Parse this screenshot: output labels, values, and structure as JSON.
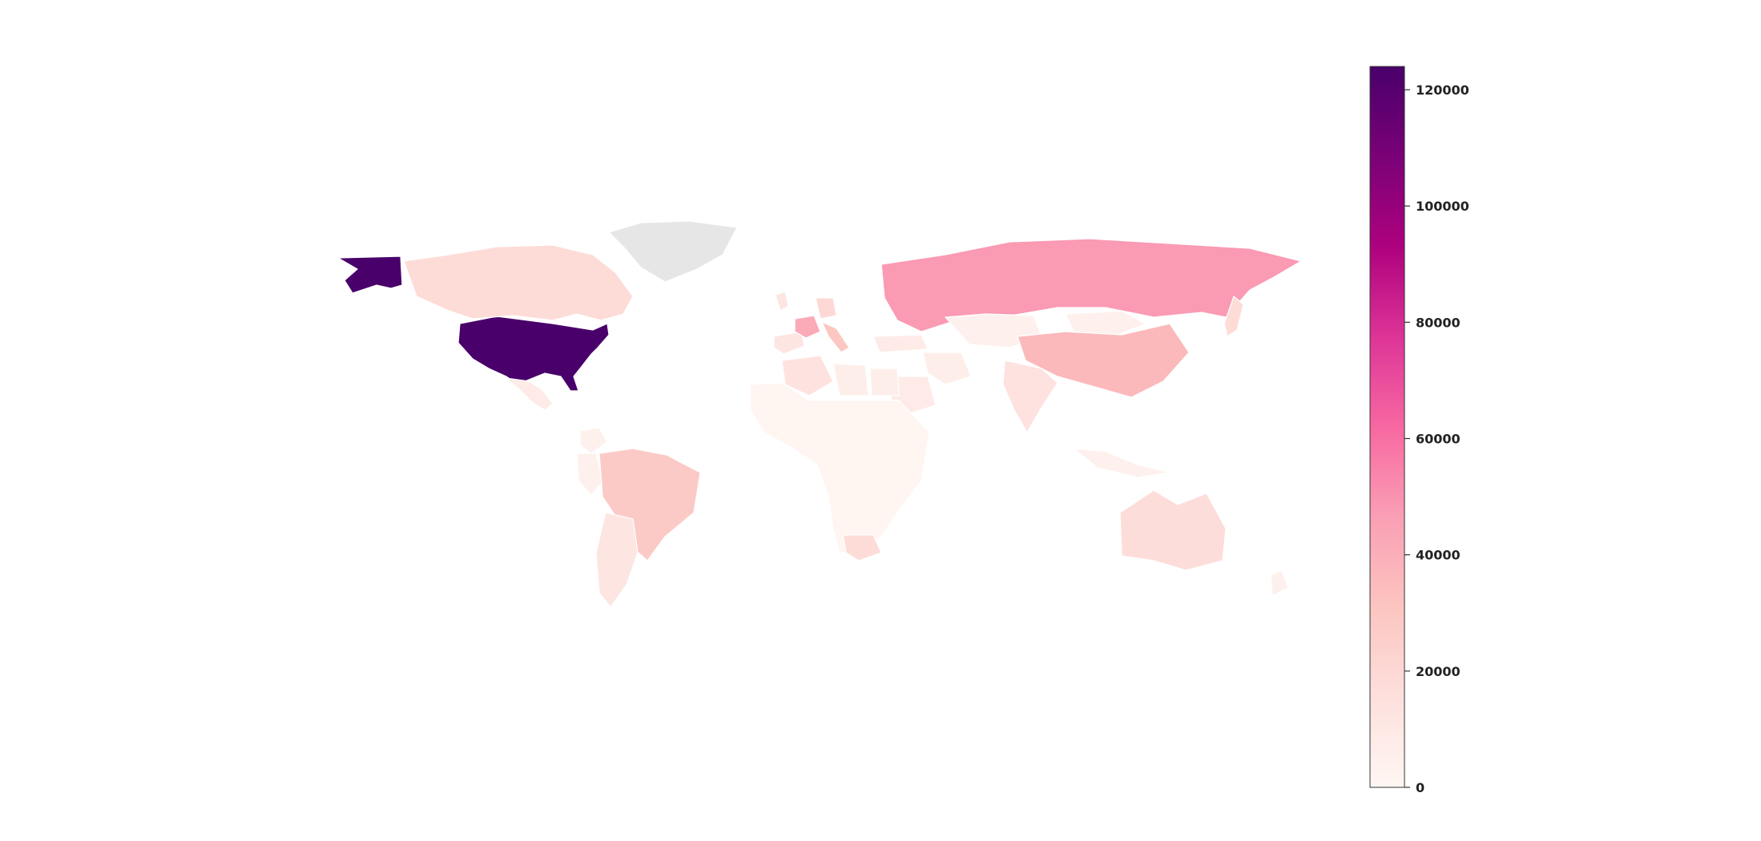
{
  "chart_data": {
    "type": "choropleth",
    "title": "",
    "colormap": "RdPu",
    "no_data_color": "#e6e6e6",
    "vmin": 0,
    "vmax": 124000,
    "colorbar": {
      "ticks": [
        0,
        20000,
        40000,
        60000,
        80000,
        100000,
        120000
      ],
      "tick_labels": [
        "0",
        "20000",
        "40000",
        "60000",
        "80000",
        "100000",
        "120000"
      ]
    },
    "regions": [
      {
        "name": "United States",
        "value": 124000
      },
      {
        "name": "Russia",
        "value": 48000
      },
      {
        "name": "China",
        "value": 36000
      },
      {
        "name": "Brazil",
        "value": 28000
      },
      {
        "name": "Canada",
        "value": 18000
      },
      {
        "name": "Australia",
        "value": 17000
      },
      {
        "name": "Argentina",
        "value": 12000
      },
      {
        "name": "France",
        "value": 42000
      },
      {
        "name": "Italy",
        "value": 30000
      },
      {
        "name": "Germany",
        "value": 20000
      },
      {
        "name": "United Kingdom",
        "value": 12000
      },
      {
        "name": "Spain",
        "value": 12000
      },
      {
        "name": "Turkey",
        "value": 8000
      },
      {
        "name": "Iran",
        "value": 6000
      },
      {
        "name": "India",
        "value": 14000
      },
      {
        "name": "Kazakhstan",
        "value": 5000
      },
      {
        "name": "Mongolia",
        "value": 4000
      },
      {
        "name": "Algeria",
        "value": 14000
      },
      {
        "name": "Libya",
        "value": 6000
      },
      {
        "name": "Egypt",
        "value": 6000
      },
      {
        "name": "Saudi Arabia",
        "value": 8000
      },
      {
        "name": "Mexico",
        "value": 9000
      },
      {
        "name": "South Africa",
        "value": 18000
      },
      {
        "name": "Peru",
        "value": 5000
      },
      {
        "name": "Colombia",
        "value": 4000
      },
      {
        "name": "Japan",
        "value": 18000
      },
      {
        "name": "Indonesia",
        "value": 5000
      },
      {
        "name": "New Zealand",
        "value": 4000
      },
      {
        "name": "Greenland",
        "value": null
      }
    ]
  }
}
